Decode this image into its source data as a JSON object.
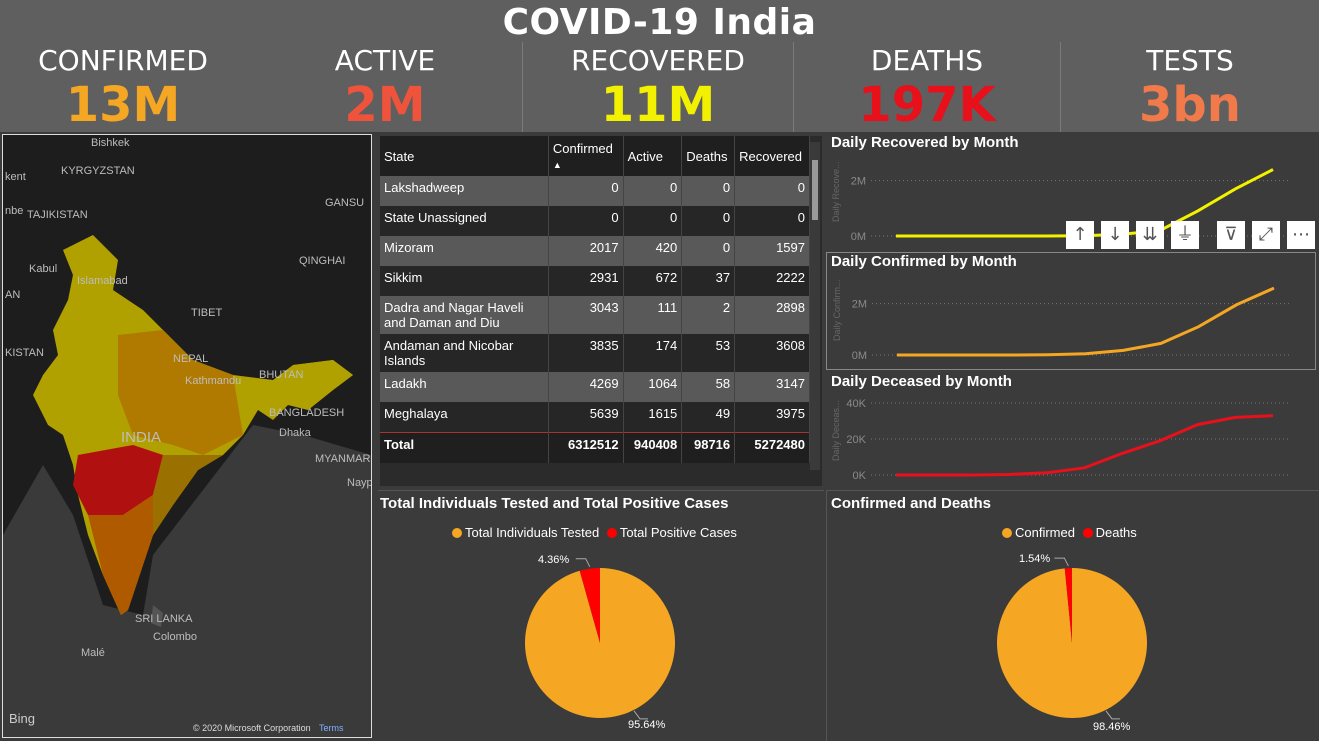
{
  "title": "COVID-19 India",
  "kpis": [
    {
      "label": "CONFIRMED",
      "value": "13M",
      "color": "#f5a623"
    },
    {
      "label": "ACTIVE",
      "value": "2M",
      "color": "#f0533b"
    },
    {
      "label": "RECOVERED",
      "value": "11M",
      "color": "#f2f200"
    },
    {
      "label": "DEATHS",
      "value": "197K",
      "color": "#e8101a"
    },
    {
      "label": "TESTS",
      "value": "3bn",
      "color": "#f07a4a"
    }
  ],
  "map": {
    "labels": [
      "Bishkek",
      "KYRGYZSTAN",
      "TAJIKISTAN",
      "Kabul",
      "Islamabad",
      "GANSU",
      "QINGHAI",
      "TIBET",
      "NEPAL",
      "Kathmandu",
      "BHUTAN",
      "BANGLADESH",
      "Dhaka",
      "INDIA",
      "MYANMAR",
      "Nayp",
      "SRI LANKA",
      "Colombo",
      "Malé",
      "KISTAN",
      "kent",
      "nbe",
      "AN"
    ],
    "logo": "Bing",
    "copyright": "© 2020 Microsoft Corporation",
    "terms": "Terms"
  },
  "table": {
    "headers": [
      "State",
      "Confirmed",
      "Active",
      "Deaths",
      "Recovered"
    ],
    "rows": [
      {
        "state": "Lakshadweep",
        "confirmed": "0",
        "active": "0",
        "deaths": "0",
        "recovered": "0"
      },
      {
        "state": "State Unassigned",
        "confirmed": "0",
        "active": "0",
        "deaths": "0",
        "recovered": "0"
      },
      {
        "state": "Mizoram",
        "confirmed": "2017",
        "active": "420",
        "deaths": "0",
        "recovered": "1597"
      },
      {
        "state": "Sikkim",
        "confirmed": "2931",
        "active": "672",
        "deaths": "37",
        "recovered": "2222"
      },
      {
        "state": "Dadra and Nagar Haveli and Daman and Diu",
        "confirmed": "3043",
        "active": "111",
        "deaths": "2",
        "recovered": "2898"
      },
      {
        "state": "Andaman and Nicobar Islands",
        "confirmed": "3835",
        "active": "174",
        "deaths": "53",
        "recovered": "3608"
      },
      {
        "state": "Ladakh",
        "confirmed": "4269",
        "active": "1064",
        "deaths": "58",
        "recovered": "3147"
      },
      {
        "state": "Meghalaya",
        "confirmed": "5639",
        "active": "1615",
        "deaths": "49",
        "recovered": "3975"
      }
    ],
    "total": {
      "state": "Total",
      "confirmed": "6312512",
      "active": "940408",
      "deaths": "98716",
      "recovered": "5272480"
    }
  },
  "toolbar": [
    "↑",
    "↓",
    "⇊",
    "⏚",
    "⊽",
    "⤢",
    "⋯"
  ],
  "chart_data": [
    {
      "type": "line",
      "title": "Daily Recovered by Month",
      "ylabel": "Daily Recove...",
      "yticks": [
        "0M",
        "2M"
      ],
      "ylim": [
        0,
        2600000
      ],
      "x": [
        1,
        2,
        3,
        4,
        5,
        6,
        7,
        8,
        9,
        10,
        11
      ],
      "values": [
        0,
        0,
        0,
        0,
        0,
        10000,
        60000,
        200000,
        900000,
        1700000,
        2400000
      ],
      "color": "#f2f200"
    },
    {
      "type": "line",
      "title": "Daily Confirmed by Month",
      "ylabel": "Daily Confirm...",
      "yticks": [
        "0M",
        "2M"
      ],
      "ylim": [
        0,
        2800000
      ],
      "x": [
        1,
        2,
        3,
        4,
        5,
        6,
        7,
        8,
        9,
        10,
        11
      ],
      "values": [
        0,
        0,
        0,
        0,
        10000,
        50000,
        180000,
        450000,
        1100000,
        1950000,
        2600000
      ],
      "color": "#f5a623"
    },
    {
      "type": "line",
      "title": "Daily Deceased by Month",
      "ylabel": "Daily Deceas...",
      "yticks": [
        "0K",
        "20K",
        "40K"
      ],
      "ylim": [
        0,
        40000
      ],
      "x": [
        1,
        2,
        3,
        4,
        5,
        6,
        7,
        8,
        9,
        10,
        11
      ],
      "values": [
        0,
        0,
        0,
        300,
        1200,
        4000,
        12000,
        19000,
        28000,
        32000,
        33000
      ],
      "color": "#e8101a"
    },
    {
      "type": "pie",
      "title": "Total Individuals Tested and Total Positive Cases",
      "labels": [
        "Total Individuals Tested",
        "Total Positive Cases"
      ],
      "values": [
        95.64,
        4.36
      ],
      "pct_labels": [
        "95.64%",
        "4.36%"
      ],
      "colors": [
        "#f5a623",
        "#ff0000"
      ],
      "legend": "top-center"
    },
    {
      "type": "pie",
      "title": "Confirmed and Deaths",
      "labels": [
        "Confirmed",
        "Deaths"
      ],
      "values": [
        98.46,
        1.54
      ],
      "pct_labels": [
        "98.46%",
        "1.54%"
      ],
      "colors": [
        "#f5a623",
        "#ff0000"
      ],
      "legend": "top-center"
    }
  ]
}
